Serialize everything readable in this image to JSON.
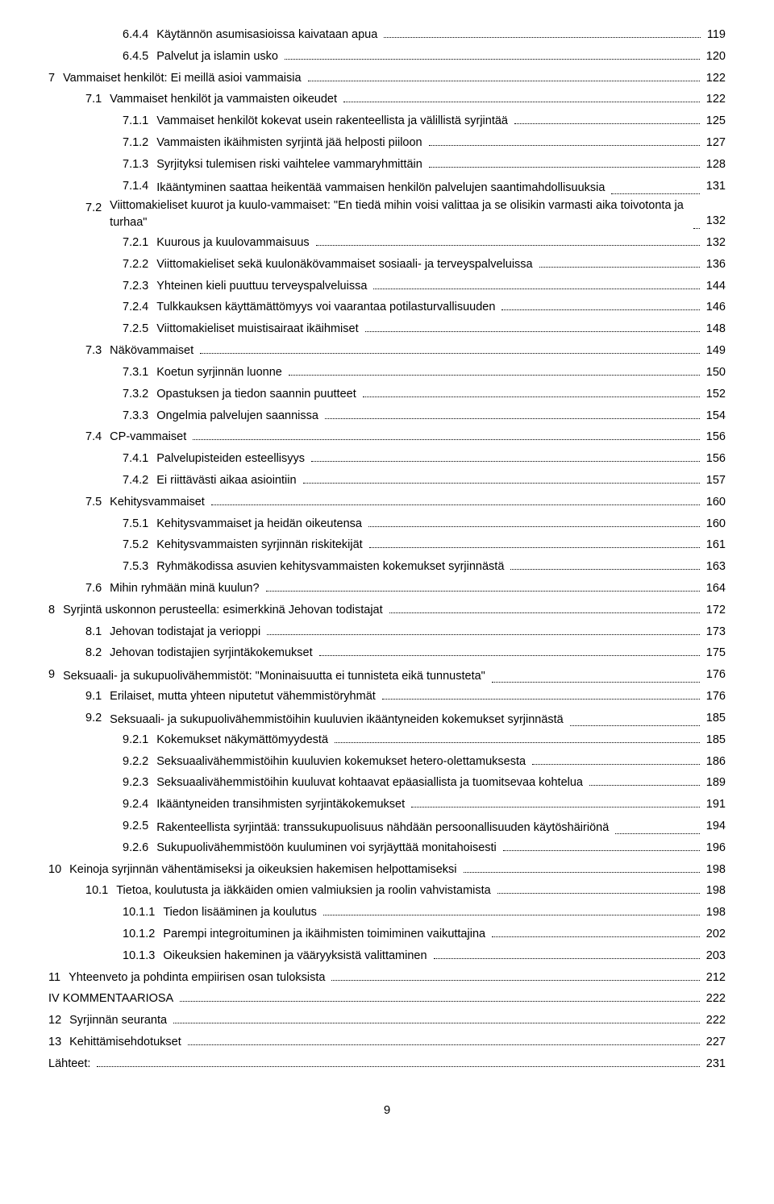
{
  "pageNumber": "9",
  "entries": [
    {
      "indent": 2,
      "num": "6.4.4",
      "title": "Käytännön asumisasioissa kaivataan apua",
      "page": "119"
    },
    {
      "indent": 2,
      "num": "6.4.5",
      "title": "Palvelut ja islamin usko",
      "page": "120"
    },
    {
      "indent": 0,
      "num": "7",
      "title": "Vammaiset henkilöt: Ei meillä asioi vammaisia",
      "page": "122"
    },
    {
      "indent": 1,
      "num": "7.1",
      "title": "Vammaiset henkilöt ja vammaisten oikeudet",
      "page": "122"
    },
    {
      "indent": 2,
      "num": "7.1.1",
      "title": "Vammaiset henkilöt kokevat usein rakenteellista ja välillistä syrjintää",
      "page": "125"
    },
    {
      "indent": 2,
      "num": "7.1.2",
      "title": "Vammaisten ikäihmisten syrjintä jää helposti piiloon",
      "page": "127"
    },
    {
      "indent": 2,
      "num": "7.1.3",
      "title": "Syrjityksi tulemisen riski vaihtelee vammaryhmittäin",
      "page": "128"
    },
    {
      "indent": 2,
      "num": "7.1.4",
      "title": "Ikääntyminen saattaa heikentää vammaisen henkilön palvelujen saantimahdollisuuksia",
      "page": "131"
    },
    {
      "indent": 1,
      "num": "7.2",
      "title": "Viittomakieliset kuurot ja kuulo-vammaiset: \"En tiedä mihin voisi valittaa ja se olisikin varmasti aika toivotonta ja turhaa\"",
      "page": "132"
    },
    {
      "indent": 2,
      "num": "7.2.1",
      "title": "Kuurous ja kuulovammaisuus",
      "page": "132"
    },
    {
      "indent": 2,
      "num": "7.2.2",
      "title": "Viittomakieliset sekä kuulonäkövammaiset sosiaali- ja terveyspalveluissa",
      "page": "136"
    },
    {
      "indent": 2,
      "num": "7.2.3",
      "title": "Yhteinen kieli puuttuu terveyspalveluissa",
      "page": "144"
    },
    {
      "indent": 2,
      "num": "7.2.4",
      "title": "Tulkkauksen käyttämättömyys voi vaarantaa potilasturvallisuuden",
      "page": "146"
    },
    {
      "indent": 2,
      "num": "7.2.5",
      "title": "Viittomakieliset muistisairaat ikäihmiset",
      "page": "148"
    },
    {
      "indent": 1,
      "num": "7.3",
      "title": "Näkövammaiset",
      "page": "149"
    },
    {
      "indent": 2,
      "num": "7.3.1",
      "title": "Koetun syrjinnän luonne",
      "page": "150"
    },
    {
      "indent": 2,
      "num": "7.3.2",
      "title": "Opastuksen ja tiedon saannin puutteet",
      "page": "152"
    },
    {
      "indent": 2,
      "num": "7.3.3",
      "title": "Ongelmia palvelujen saannissa",
      "page": "154"
    },
    {
      "indent": 1,
      "num": "7.4",
      "title": "CP-vammaiset",
      "page": "156"
    },
    {
      "indent": 2,
      "num": "7.4.1",
      "title": "Palvelupisteiden esteellisyys",
      "page": "156"
    },
    {
      "indent": 2,
      "num": "7.4.2",
      "title": "Ei riittävästi aikaa asiointiin",
      "page": "157"
    },
    {
      "indent": 1,
      "num": "7.5",
      "title": "Kehitysvammaiset",
      "page": "160"
    },
    {
      "indent": 2,
      "num": "7.5.1",
      "title": "Kehitysvammaiset ja heidän oikeutensa",
      "page": "160"
    },
    {
      "indent": 2,
      "num": "7.5.2",
      "title": "Kehitysvammaisten syrjinnän riskitekijät",
      "page": "161"
    },
    {
      "indent": 2,
      "num": "7.5.3",
      "title": "Ryhmäkodissa asuvien kehitysvammaisten kokemukset syrjinnästä",
      "page": "163"
    },
    {
      "indent": 1,
      "num": "7.6",
      "title": "Mihin ryhmään minä kuulun?",
      "page": "164"
    },
    {
      "indent": 0,
      "num": "8",
      "title": "Syrjintä uskonnon perusteella: esimerkkinä Jehovan todistajat",
      "page": "172"
    },
    {
      "indent": 1,
      "num": "8.1",
      "title": "Jehovan todistajat ja verioppi",
      "page": "173"
    },
    {
      "indent": 1,
      "num": "8.2",
      "title": "Jehovan todistajien syrjintäkokemukset",
      "page": "175"
    },
    {
      "indent": 0,
      "num": "9",
      "title": "Seksuaali- ja sukupuolivähemmistöt: \"Moninaisuutta ei tunnisteta eikä tunnusteta\"",
      "page": "176"
    },
    {
      "indent": 1,
      "num": "9.1",
      "title": "Erilaiset, mutta yhteen niputetut vähemmistöryhmät",
      "page": "176"
    },
    {
      "indent": 1,
      "num": "9.2",
      "title": "Seksuaali- ja sukupuolivähemmistöihin kuuluvien ikääntyneiden kokemukset syrjinnästä",
      "page": "185"
    },
    {
      "indent": 2,
      "num": "9.2.1",
      "title": "Kokemukset näkymättömyydestä",
      "page": "185"
    },
    {
      "indent": 2,
      "num": "9.2.2",
      "title": "Seksuaalivähemmistöihin kuuluvien kokemukset hetero-olettamuksesta",
      "page": "186"
    },
    {
      "indent": 2,
      "num": "9.2.3",
      "title": "Seksuaalivähemmistöihin kuuluvat kohtaavat epäasiallista ja tuomitsevaa kohtelua",
      "page": "189"
    },
    {
      "indent": 2,
      "num": "9.2.4",
      "title": "Ikääntyneiden transihmisten syrjintäkokemukset",
      "page": "191"
    },
    {
      "indent": 2,
      "num": "9.2.5",
      "title": "Rakenteellista syrjintää: transsukupuolisuus nähdään persoonallisuuden käytöshäiriönä",
      "page": "194"
    },
    {
      "indent": 2,
      "num": "9.2.6",
      "title": "Sukupuolivähemmistöön kuuluminen voi syrjäyttää monitahoisesti",
      "page": "196"
    },
    {
      "indent": 0,
      "num": "10",
      "title": "Keinoja syrjinnän vähentämiseksi ja oikeuksien hakemisen helpottamiseksi",
      "page": "198"
    },
    {
      "indent": 1,
      "num": "10.1",
      "title": "Tietoa, koulutusta ja iäkkäiden omien valmiuksien ja roolin vahvistamista",
      "page": "198"
    },
    {
      "indent": 2,
      "num": "10.1.1",
      "title": "Tiedon lisääminen ja koulutus",
      "page": "198"
    },
    {
      "indent": 2,
      "num": "10.1.2",
      "title": "Parempi integroituminen ja ikäihmisten toimiminen vaikuttajina",
      "page": "202"
    },
    {
      "indent": 2,
      "num": "10.1.3",
      "title": "Oikeuksien hakeminen ja vääryyksistä valittaminen",
      "page": "203"
    },
    {
      "indent": 0,
      "num": "11",
      "title": "Yhteenveto ja pohdinta empiirisen osan tuloksista",
      "page": "212"
    },
    {
      "indent": 0,
      "num": "",
      "title": "IV KOMMENTAARIOSA",
      "page": "222"
    },
    {
      "indent": 0,
      "num": "12",
      "title": "Syrjinnän seuranta",
      "page": "222"
    },
    {
      "indent": 0,
      "num": "13",
      "title": "Kehittämisehdotukset",
      "page": "227"
    },
    {
      "indent": 0,
      "num": "",
      "title": "Lähteet:",
      "page": "231"
    }
  ]
}
